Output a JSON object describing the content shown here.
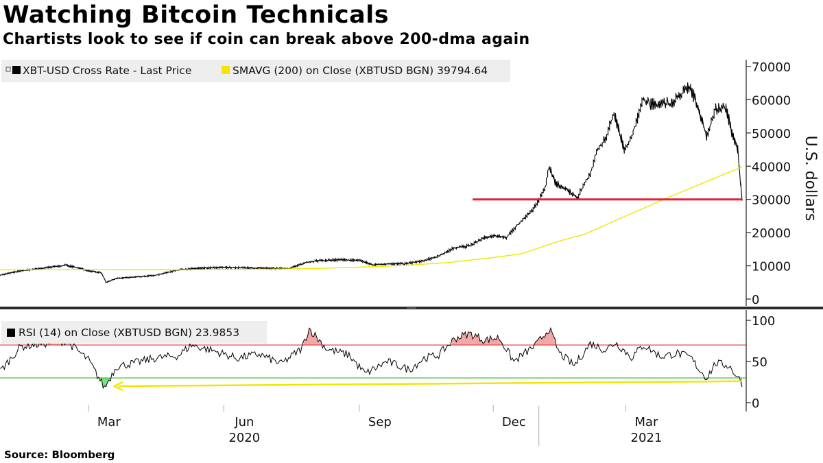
{
  "header": {
    "title": "Watching Bitcoin Technicals",
    "subtitle": "Chartists look to see if coin can break above 200-dma again"
  },
  "footer": {
    "source": "Source:  Bloomberg"
  },
  "colors": {
    "price": "#000000",
    "sma": "#f2e600",
    "support_line": "#e0203c",
    "rsi_overbought": "#e02020",
    "rsi_oversold": "#22aa22",
    "overbought_fill": "#f2a8a8",
    "oversold_fill": "#7fe07f",
    "arrow": "#f2e600",
    "legend_bg": "#eeeeee"
  },
  "chart_data": [
    {
      "type": "line",
      "panel": "price",
      "ylabel": "U.S. dollars",
      "ylim": [
        0,
        70000
      ],
      "yticks": [
        0,
        10000,
        20000,
        30000,
        40000,
        50000,
        60000,
        70000
      ],
      "x_axis": {
        "range": [
          "2020-01-01",
          "2021-05-19"
        ],
        "months": [
          "Mar",
          "Jun",
          "Sep",
          "Dec",
          "Mar"
        ],
        "years": [
          "2020",
          "2021"
        ]
      },
      "grid": false,
      "legend": {
        "placement": "top-left",
        "price_label": "XBT-USD Cross Rate - Last Price",
        "sma_label": "SMAVG (200)  on Close (XBTUSD BGN) 39794.64"
      },
      "series": [
        {
          "name": "XBT-USD Cross Rate - Last Price",
          "x": [
            "2020-01-01",
            "2020-01-15",
            "2020-02-01",
            "2020-02-15",
            "2020-03-01",
            "2020-03-10",
            "2020-03-13",
            "2020-03-20",
            "2020-04-01",
            "2020-04-15",
            "2020-05-01",
            "2020-05-15",
            "2020-06-01",
            "2020-06-15",
            "2020-07-01",
            "2020-07-15",
            "2020-07-27",
            "2020-08-01",
            "2020-08-15",
            "2020-09-01",
            "2020-09-10",
            "2020-09-20",
            "2020-10-01",
            "2020-10-15",
            "2020-10-25",
            "2020-11-05",
            "2020-11-15",
            "2020-11-25",
            "2020-12-01",
            "2020-12-10",
            "2020-12-20",
            "2020-12-28",
            "2021-01-05",
            "2021-01-08",
            "2021-01-12",
            "2021-01-20",
            "2021-01-27",
            "2021-02-05",
            "2021-02-10",
            "2021-02-15",
            "2021-02-21",
            "2021-02-28",
            "2021-03-05",
            "2021-03-13",
            "2021-03-20",
            "2021-04-01",
            "2021-04-14",
            "2021-04-20",
            "2021-04-25",
            "2021-05-01",
            "2021-05-08",
            "2021-05-12",
            "2021-05-16",
            "2021-05-19"
          ],
          "values": [
            7200,
            8500,
            9400,
            10200,
            8600,
            7900,
            5000,
            6200,
            6600,
            7100,
            8800,
            9300,
            9500,
            9400,
            9200,
            9200,
            11000,
            11400,
            11800,
            11700,
            10300,
            10600,
            10600,
            11500,
            13000,
            15500,
            16000,
            18500,
            19000,
            18500,
            23500,
            27000,
            33000,
            40000,
            35000,
            33000,
            30500,
            38000,
            45000,
            48000,
            56000,
            45000,
            49000,
            60000,
            58500,
            59000,
            64000,
            56000,
            49000,
            57000,
            58000,
            50000,
            45000,
            30000
          ]
        },
        {
          "name": "SMAVG (200)  on Close (XBTUSD BGN) 39794.64",
          "x": [
            "2020-01-01",
            "2020-03-01",
            "2020-05-01",
            "2020-07-01",
            "2020-08-01",
            "2020-09-01",
            "2020-10-01",
            "2020-11-01",
            "2020-12-01",
            "2020-12-20",
            "2021-01-15",
            "2021-02-01",
            "2021-03-01",
            "2021-04-01",
            "2021-05-01",
            "2021-05-19"
          ],
          "values": [
            8800,
            8900,
            8800,
            9000,
            9200,
            9600,
            10100,
            11000,
            12500,
            13600,
            17500,
            19500,
            25000,
            31000,
            36500,
            39794.64
          ]
        }
      ],
      "annotations": [
        {
          "type": "hline",
          "y": 30000,
          "x_start": "2020-11-17",
          "x_end": "2021-05-19"
        }
      ]
    },
    {
      "type": "line",
      "panel": "rsi",
      "ylim": [
        0,
        100
      ],
      "yticks": [
        0,
        50,
        100
      ],
      "legend": {
        "placement": "top-left",
        "label": "RSI (14)  on Close (XBTUSD BGN) 23.9853"
      },
      "series": [
        {
          "name": "RSI (14)  on Close (XBTUSD BGN) 23.9853",
          "x": [
            "2020-01-01",
            "2020-01-15",
            "2020-02-01",
            "2020-02-15",
            "2020-03-01",
            "2020-03-12",
            "2020-03-20",
            "2020-04-01",
            "2020-04-15",
            "2020-05-01",
            "2020-05-10",
            "2020-05-25",
            "2020-06-10",
            "2020-06-25",
            "2020-07-10",
            "2020-07-24",
            "2020-07-29",
            "2020-08-10",
            "2020-08-25",
            "2020-09-05",
            "2020-09-20",
            "2020-10-05",
            "2020-10-15",
            "2020-10-25",
            "2020-11-05",
            "2020-11-15",
            "2020-11-25",
            "2020-12-05",
            "2020-12-15",
            "2020-12-30",
            "2021-01-08",
            "2021-01-15",
            "2021-01-25",
            "2021-02-05",
            "2021-02-15",
            "2021-02-22",
            "2021-03-05",
            "2021-03-13",
            "2021-03-25",
            "2021-04-05",
            "2021-04-14",
            "2021-04-20",
            "2021-04-25",
            "2021-05-01",
            "2021-05-10",
            "2021-05-19"
          ],
          "values": [
            38,
            68,
            72,
            75,
            52,
            18,
            44,
            48,
            54,
            57,
            70,
            63,
            54,
            59,
            47,
            66,
            90,
            65,
            58,
            35,
            50,
            40,
            54,
            58,
            78,
            84,
            76,
            79,
            50,
            70,
            90,
            60,
            45,
            72,
            64,
            73,
            55,
            70,
            56,
            60,
            55,
            40,
            30,
            48,
            45,
            24
          ]
        }
      ],
      "reference_lines": [
        {
          "name": "overbought",
          "y": 70
        },
        {
          "name": "oversold",
          "y": 30
        }
      ],
      "annotations": [
        {
          "type": "arrow",
          "from": {
            "x": "2021-05-19",
            "y": 26
          },
          "to": {
            "x": "2020-03-15",
            "y": 20
          }
        }
      ]
    }
  ]
}
